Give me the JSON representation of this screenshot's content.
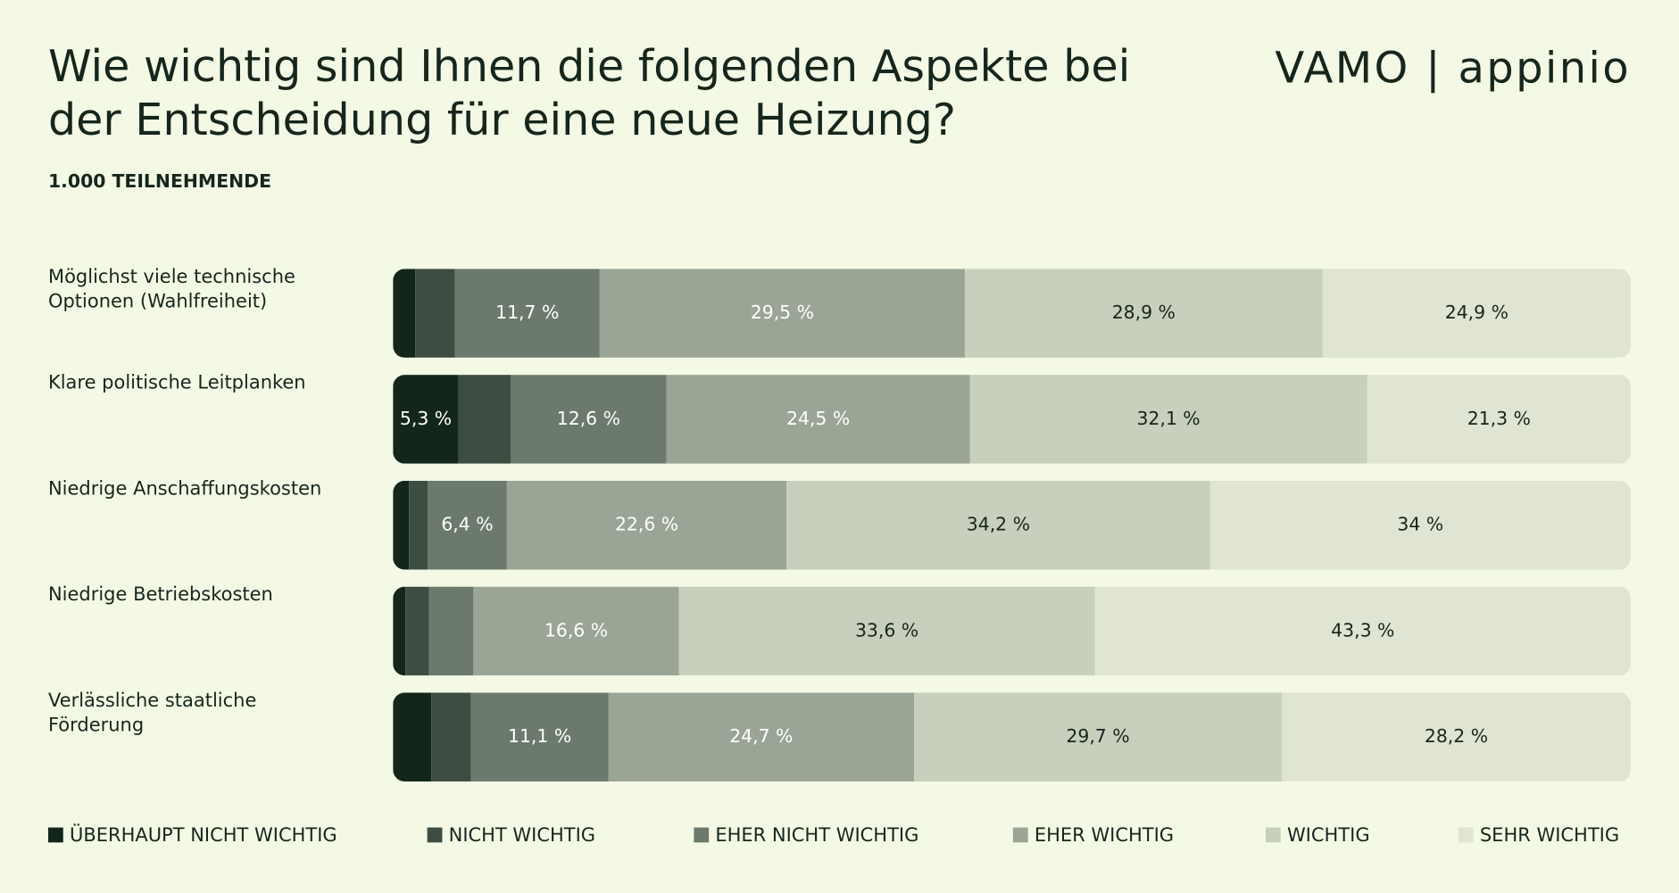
{
  "chart_data": {
    "type": "stacked-bar",
    "orientation": "horizontal",
    "title": "Wie wichtig sind Ihnen die folgenden Aspekte bei der Entscheidung für eine neue Heizung?",
    "subtitle": "1.000 TEILNEHMENDE",
    "logo": "VAMO | appinio",
    "xlim": [
      0,
      100
    ],
    "categories": [
      "Möglichst viele technische Optionen (Wahlfreiheit)",
      "Klare politische Leitplanken",
      "Niedrige Anschaffungskosten",
      "Niedrige Betriebskosten",
      "Verlässliche staatliche Förderung"
    ],
    "series": [
      {
        "name": "ÜBERHAUPT NICHT WICHTIG",
        "color": "#13261c",
        "values": [
          1.8,
          5.3,
          1.3,
          1.0,
          3.1
        ],
        "value_labels": [
          null,
          "5,3 %",
          null,
          null,
          null
        ]
      },
      {
        "name": "NICHT WICHTIG",
        "color": "#3d4d42",
        "values": [
          3.2,
          4.2,
          1.5,
          1.9,
          3.2
        ],
        "value_labels": [
          null,
          null,
          null,
          null,
          null
        ]
      },
      {
        "name": "EHER NICHT WICHTIG",
        "color": "#6b7a6c",
        "values": [
          11.7,
          12.6,
          6.4,
          3.6,
          11.1
        ],
        "value_labels": [
          "11,7 %",
          "12,6 %",
          "6,4 %",
          null,
          "11,1 %"
        ]
      },
      {
        "name": "EHER WICHTIG",
        "color": "#9aa595",
        "values": [
          29.5,
          24.5,
          22.6,
          16.6,
          24.7
        ],
        "value_labels": [
          "29,5 %",
          "24,5 %",
          "22,6 %",
          "16,6 %",
          "24,7 %"
        ]
      },
      {
        "name": "WICHTIG",
        "color": "#c8cfbd",
        "values": [
          28.9,
          32.1,
          34.2,
          33.6,
          29.7
        ],
        "value_labels": [
          "28,9 %",
          "32,1 %",
          "34,2 %",
          "33,6 %",
          "29,7 %"
        ]
      },
      {
        "name": "SEHR WICHTIG",
        "color": "#dfe4d3",
        "values": [
          24.9,
          21.3,
          34,
          43.3,
          28.2
        ],
        "value_labels": [
          "24,9 %",
          "21,3 %",
          "34 %",
          "43,3 %",
          "28,2 %"
        ]
      }
    ]
  }
}
